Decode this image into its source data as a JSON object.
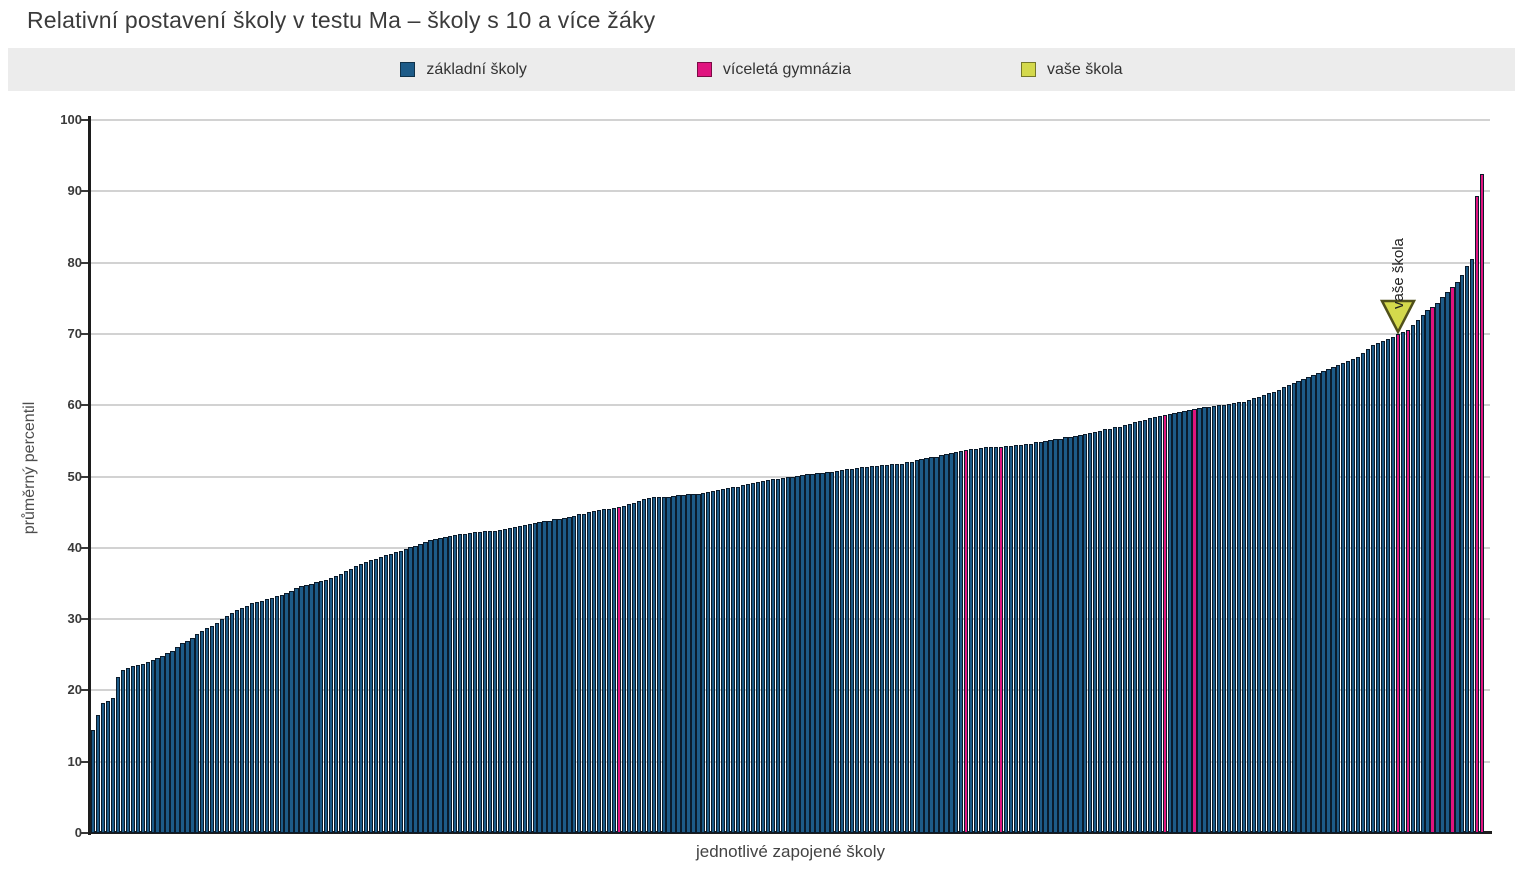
{
  "title": "Relativní postavení školy v testu Ma – školy s 10 a více žáky",
  "legend": {
    "items": [
      {
        "label": "základní školy",
        "color": "#1d5b88"
      },
      {
        "label": "víceletá gymnázia",
        "color": "#e0147f"
      },
      {
        "label": "vaše škola",
        "color": "#d4d94c"
      }
    ]
  },
  "chart_data": {
    "type": "bar",
    "title": "Relativní postavení školy v testu Ma – školy s 10 a více žáky",
    "xlabel": "jednotlivé zapojené školy",
    "ylabel": "průměrný percentil",
    "ylim": [
      0,
      100
    ],
    "yticks": [
      0,
      10,
      20,
      30,
      40,
      50,
      60,
      70,
      80,
      90,
      100
    ],
    "grid": "horizontal",
    "legend_position": "top",
    "colors": {
      "zakladni": "#1d5b88",
      "gymnazium": "#e0147f",
      "vase_skola": "#d4d94c",
      "bar_border": "#0b1b2b",
      "gridline": "#d2d2d2",
      "axis": "#1d1d1d",
      "legend_background": "#ececec"
    },
    "series_note": "each bar = one school, sorted ascending by average percentile",
    "values": [
      14.4,
      16.5,
      18.2,
      18.5,
      18.9,
      21.9,
      22.9,
      23.2,
      23.4,
      23.6,
      23.7,
      24.0,
      24.3,
      24.6,
      24.8,
      25.2,
      25.6,
      26.1,
      26.6,
      27.0,
      27.4,
      27.9,
      28.3,
      28.7,
      29.1,
      29.5,
      30.0,
      30.5,
      30.9,
      31.3,
      31.6,
      31.9,
      32.2,
      32.4,
      32.6,
      32.8,
      33.0,
      33.2,
      33.4,
      33.7,
      34.0,
      34.3,
      34.6,
      34.8,
      35.0,
      35.2,
      35.4,
      35.5,
      35.8,
      36.1,
      36.4,
      36.7,
      37.1,
      37.4,
      37.7,
      38.0,
      38.3,
      38.5,
      38.7,
      39.0,
      39.2,
      39.4,
      39.6,
      39.8,
      40.1,
      40.3,
      40.6,
      40.8,
      41.1,
      41.3,
      41.4,
      41.5,
      41.6,
      41.8,
      41.9,
      42.0,
      42.1,
      42.2,
      42.2,
      42.3,
      42.4,
      42.4,
      42.5,
      42.6,
      42.8,
      42.9,
      43.1,
      43.2,
      43.4,
      43.5,
      43.6,
      43.7,
      43.8,
      44.0,
      44.1,
      44.2,
      44.3,
      44.5,
      44.7,
      44.8,
      45.0,
      45.2,
      45.3,
      45.4,
      45.5,
      45.6,
      45.7,
      45.9,
      46.1,
      46.3,
      46.6,
      46.8,
      47.0,
      47.1,
      47.1,
      47.2,
      47.2,
      47.3,
      47.4,
      47.4,
      47.5,
      47.5,
      47.6,
      47.7,
      47.9,
      48.0,
      48.1,
      48.2,
      48.4,
      48.5,
      48.6,
      48.8,
      48.9,
      49.1,
      49.2,
      49.4,
      49.5,
      49.6,
      49.7,
      49.8,
      49.9,
      50.0,
      50.1,
      50.2,
      50.3,
      50.4,
      50.5,
      50.5,
      50.6,
      50.7,
      50.8,
      50.9,
      51.0,
      51.1,
      51.2,
      51.3,
      51.4,
      51.5,
      51.5,
      51.6,
      51.6,
      51.7,
      51.8,
      51.8,
      52.0,
      52.1,
      52.3,
      52.4,
      52.6,
      52.7,
      52.8,
      53.0,
      53.1,
      53.3,
      53.4,
      53.6,
      53.7,
      53.8,
      53.9,
      54.0,
      54.1,
      54.1,
      54.2,
      54.2,
      54.3,
      54.3,
      54.4,
      54.4,
      54.5,
      54.6,
      54.8,
      54.9,
      55.0,
      55.1,
      55.2,
      55.3,
      55.5,
      55.6,
      55.7,
      55.8,
      56.0,
      56.1,
      56.3,
      56.4,
      56.6,
      56.7,
      56.9,
      57.0,
      57.2,
      57.4,
      57.6,
      57.8,
      58.0,
      58.2,
      58.3,
      58.5,
      58.6,
      58.8,
      58.9,
      59.1,
      59.2,
      59.4,
      59.5,
      59.6,
      59.7,
      59.8,
      59.9,
      60.0,
      60.1,
      60.2,
      60.3,
      60.4,
      60.5,
      60.7,
      61.0,
      61.2,
      61.4,
      61.7,
      61.9,
      62.2,
      62.5,
      62.8,
      63.1,
      63.4,
      63.7,
      64.0,
      64.3,
      64.5,
      64.8,
      65.1,
      65.4,
      65.6,
      65.9,
      66.2,
      66.5,
      66.8,
      67.3,
      67.9,
      68.4,
      68.7,
      69.0,
      69.3,
      69.6,
      70.0,
      70.3,
      70.6,
      71.3,
      71.9,
      72.7,
      73.4,
      73.8,
      74.4,
      75.2,
      75.9,
      76.6,
      77.3,
      78.2,
      79.6,
      80.5,
      89.3,
      92.5
    ],
    "gymnazium_indices": [
      106,
      176,
      183,
      216,
      222,
      263,
      265,
      270,
      274,
      279,
      280
    ],
    "marker": {
      "index": 263,
      "value": 70.0,
      "label": "vaše škola"
    }
  }
}
